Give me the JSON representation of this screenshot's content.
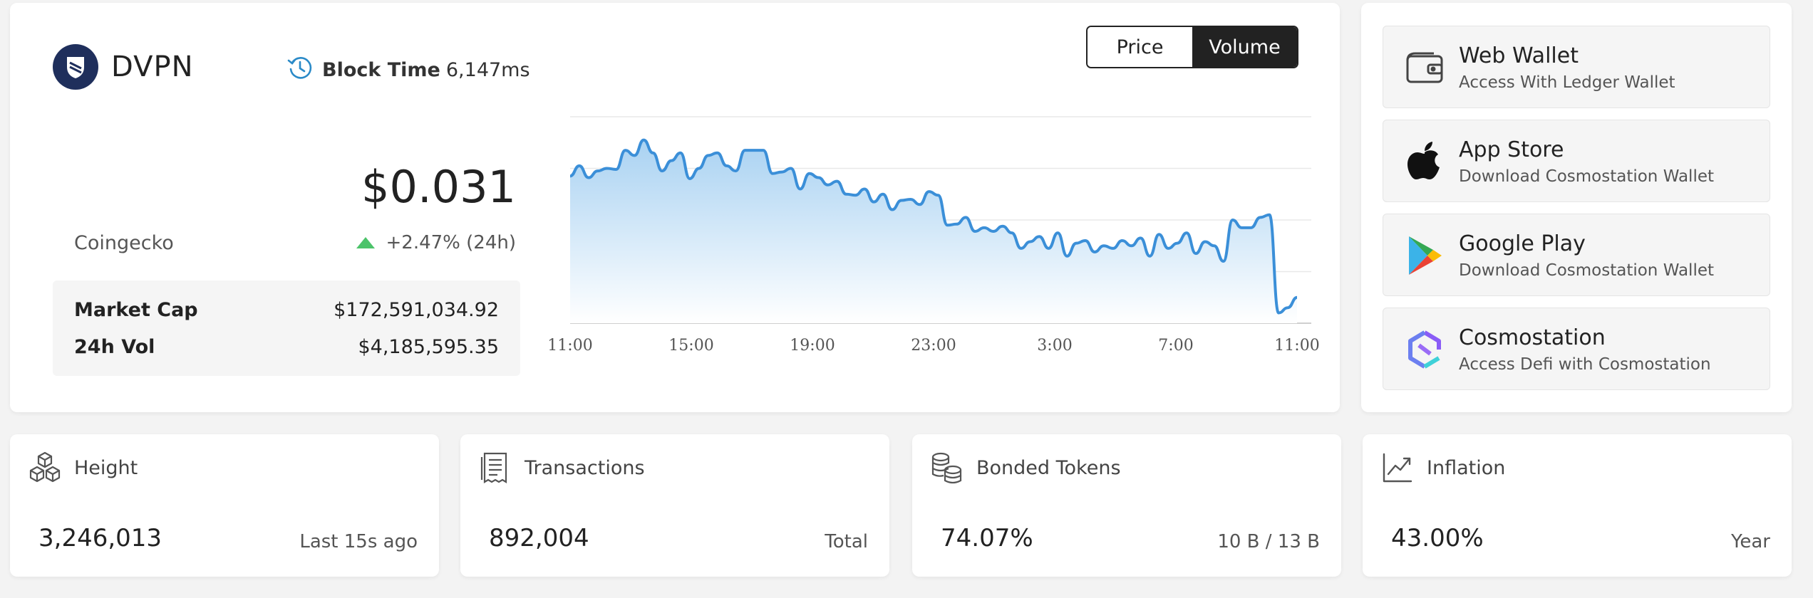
{
  "brand": {
    "name": "DVPN"
  },
  "block_time": {
    "label": "Block Time",
    "value": "6,147ms"
  },
  "price": {
    "value": "$0.031",
    "source": "Coingecko",
    "change": "+2.47% (24h)"
  },
  "stats": [
    {
      "label": "Market Cap",
      "value": "$172,591,034.92"
    },
    {
      "label": "24h Vol",
      "value": "$4,185,595.35"
    }
  ],
  "toggle": {
    "options": [
      "Price",
      "Volume"
    ],
    "selected": "Volume"
  },
  "chart_data": {
    "type": "area",
    "x_ticks": [
      "11:00",
      "15:00",
      "19:00",
      "23:00",
      "3:00",
      "7:00",
      "11:00"
    ],
    "y_range": [
      0,
      4
    ],
    "grid": true,
    "values": [
      2.85,
      3.05,
      2.82,
      2.95,
      3.0,
      2.98,
      3.35,
      3.25,
      3.55,
      3.3,
      2.95,
      3.15,
      3.3,
      2.8,
      3.0,
      3.25,
      3.3,
      3.05,
      2.95,
      3.35,
      3.35,
      3.35,
      2.9,
      2.93,
      3.0,
      2.6,
      2.9,
      2.82,
      2.68,
      2.75,
      2.5,
      2.48,
      2.6,
      2.35,
      2.5,
      2.2,
      2.38,
      2.4,
      2.3,
      2.55,
      2.48,
      1.9,
      1.92,
      2.05,
      1.78,
      1.85,
      1.78,
      1.88,
      1.75,
      1.45,
      1.58,
      1.68,
      1.45,
      1.75,
      1.3,
      1.55,
      1.6,
      1.38,
      1.5,
      1.45,
      1.6,
      1.5,
      1.65,
      1.3,
      1.72,
      1.45,
      1.55,
      1.75,
      1.35,
      1.58,
      1.5,
      1.2,
      2.0,
      1.85,
      1.85,
      2.05,
      2.1,
      0.2,
      0.3,
      0.5
    ],
    "colors": {
      "line": "#3b8fd8",
      "fill_top": "#a9d2f2",
      "fill_bottom": "#ffffff"
    }
  },
  "wallets": [
    {
      "title": "Web Wallet",
      "subtitle": "Access With Ledger Wallet",
      "icon": "wallet-icon"
    },
    {
      "title": "App Store",
      "subtitle": "Download Cosmostation Wallet",
      "icon": "apple-icon"
    },
    {
      "title": "Google Play",
      "subtitle": "Download Cosmostation Wallet",
      "icon": "google-play-icon"
    },
    {
      "title": "Cosmostation",
      "subtitle": "Access Defi with Cosmostation",
      "icon": "cosmostation-icon"
    }
  ],
  "cards": [
    {
      "label": "Height",
      "value": "3,246,013",
      "note": "Last 15s ago",
      "icon": "cubes-icon"
    },
    {
      "label": "Transactions",
      "value": "892,004",
      "note": "Total",
      "icon": "receipt-icon"
    },
    {
      "label": "Bonded Tokens",
      "value": "74.07%",
      "note": "10 B / 13 B",
      "icon": "coins-icon"
    },
    {
      "label": "Inflation",
      "value": "43.00%",
      "note": "Year",
      "icon": "trend-icon"
    }
  ]
}
